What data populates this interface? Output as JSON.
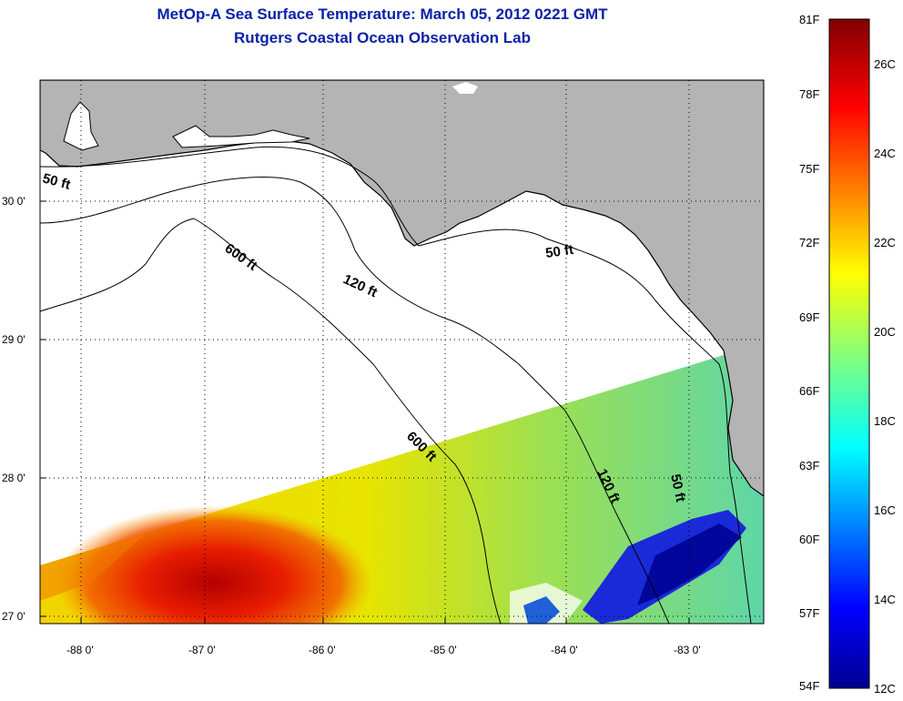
{
  "title": {
    "line1": "MetOp-A Sea Surface Temperature:  March 05, 2012 0221 GMT",
    "line2": "Rutgers Coastal Ocean Observation Lab"
  },
  "map": {
    "longitude_labels": [
      "-88 0'",
      "-87 0'",
      "-86 0'",
      "-85 0'",
      "-84 0'",
      "-83 0'"
    ],
    "latitude_labels": [
      "30 0'",
      "29 0'",
      "28 0'",
      "27 0'"
    ],
    "contour_labels": [
      {
        "text": "50 ft"
      },
      {
        "text": "600 ft"
      },
      {
        "text": "120 ft"
      },
      {
        "text": "50 ft"
      },
      {
        "text": "600 ft"
      },
      {
        "text": "120 ft"
      },
      {
        "text": "50 ft"
      }
    ],
    "colors": {
      "land": "#b4b4b4",
      "no_data": "#ffffff",
      "contour": "#000000",
      "grid": "#000000"
    }
  },
  "colorbar": {
    "fahrenheit_labels": [
      "81F",
      "78F",
      "75F",
      "72F",
      "69F",
      "66F",
      "63F",
      "60F",
      "57F",
      "54F"
    ],
    "celsius_labels": [
      "26C",
      "24C",
      "22C",
      "20C",
      "18C",
      "16C",
      "14C",
      "12C"
    ],
    "colormap": "jet",
    "range_f": [
      54,
      81
    ],
    "range_c": [
      12,
      27
    ]
  }
}
